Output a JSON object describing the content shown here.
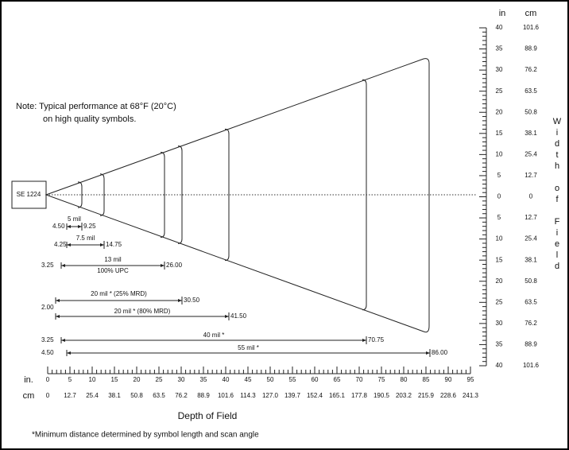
{
  "note": [
    "Note:  Typical performance at 68°F (20°C)",
    "on high quality symbols."
  ],
  "scanner_label": "SE 1224",
  "x_axis": {
    "unit_in": "in.",
    "unit_cm": "cm",
    "title": "Depth of Field",
    "in_ticks": [
      "0",
      "5",
      "10",
      "15",
      "20",
      "25",
      "30",
      "35",
      "40",
      "45",
      "50",
      "55",
      "60",
      "65",
      "70",
      "75",
      "80",
      "85",
      "90",
      "95"
    ],
    "cm_ticks": [
      "0",
      "12.7",
      "25.4",
      "38.1",
      "50.8",
      "63.5",
      "76.2",
      "88.9",
      "101.6",
      "114.3",
      "127.0",
      "139.7",
      "152.4",
      "165.1",
      "177.8",
      "190.5",
      "203.2",
      "215.9",
      "228.6",
      "241.3"
    ]
  },
  "y_axis": {
    "unit_in": "in",
    "unit_cm": "cm",
    "title": "Width of Field",
    "in_ticks": [
      "40",
      "35",
      "30",
      "25",
      "20",
      "15",
      "10",
      "5",
      "0",
      "5",
      "10",
      "15",
      "20",
      "25",
      "30",
      "35",
      "40"
    ],
    "cm_ticks": [
      "101.6",
      "88.9",
      "76.2",
      "63.5",
      "50.8",
      "38.1",
      "25.4",
      "12.7",
      "0",
      "12.7",
      "25.4",
      "38.1",
      "50.8",
      "63.5",
      "76.2",
      "88.9",
      "101.6"
    ]
  },
  "ranges": [
    {
      "name": "5 mil",
      "start": "4.50",
      "end": "9.25"
    },
    {
      "name": "7.5 mil",
      "start": "4.25",
      "end": "14.75"
    },
    {
      "name": "13 mil",
      "note": "100% UPC",
      "start": "3.25",
      "end": "26.00"
    },
    {
      "name": "20 mil * (25% MRD)",
      "start": "2.00",
      "end": "30.50"
    },
    {
      "name": "20 mil * (80% MRD)",
      "end": "41.50"
    },
    {
      "name": "40 mil *",
      "start": "3.25",
      "end": "70.75"
    },
    {
      "name": "55 mil *",
      "start": "4.50",
      "end": "86.00"
    }
  ],
  "footnote": "*Minimum distance determined by symbol length and scan angle"
}
